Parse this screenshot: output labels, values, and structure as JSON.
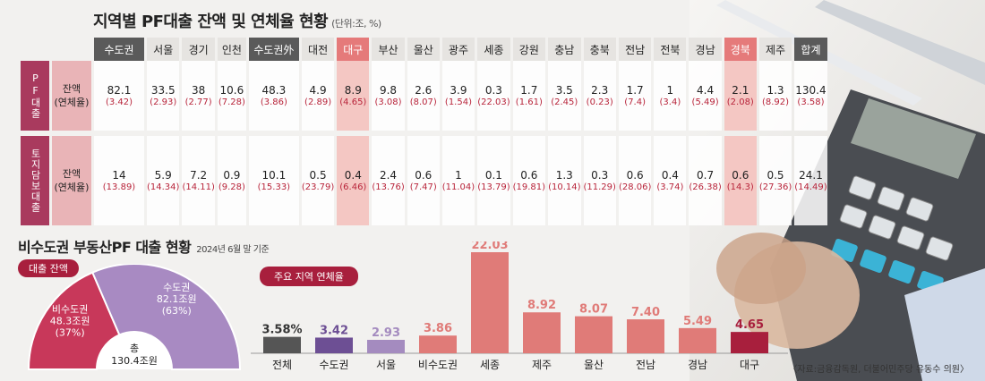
{
  "table": {
    "title": "지역별 PF대출 잔액 및 연체율 현황",
    "unit": "(단위:조, %)",
    "headers": [
      "수도권",
      "서울",
      "경기",
      "인천",
      "수도권外",
      "대전",
      "대구",
      "부산",
      "울산",
      "광주",
      "세종",
      "강원",
      "충남",
      "충북",
      "전남",
      "전북",
      "경남",
      "경북",
      "제주",
      "합계"
    ],
    "row_groups": [
      {
        "side_label": "PF대출",
        "label_line1": "잔액",
        "label_line2": "(연체율)",
        "values": [
          "82.1",
          "33.5",
          "38",
          "10.6",
          "48.3",
          "4.9",
          "8.9",
          "9.8",
          "2.6",
          "3.9",
          "0.3",
          "1.7",
          "3.5",
          "2.3",
          "1.7",
          "1",
          "4.4",
          "2.1",
          "1.3",
          "130.4"
        ],
        "rates": [
          "(3.42)",
          "(2.93)",
          "(2.77)",
          "(7.28)",
          "(3.86)",
          "(2.89)",
          "(4.65)",
          "(3.08)",
          "(8.07)",
          "(1.54)",
          "(22.03)",
          "(1.61)",
          "(2.45)",
          "(0.23)",
          "(7.4)",
          "(3.4)",
          "(5.49)",
          "(2.08)",
          "(8.92)",
          "(3.58)"
        ]
      },
      {
        "side_label": "토지담보대출",
        "label_line1": "잔액",
        "label_line2": "(연체율)",
        "values": [
          "14",
          "5.9",
          "7.2",
          "0.9",
          "10.1",
          "0.5",
          "0.4",
          "2.4",
          "0.6",
          "1",
          "0.1",
          "0.6",
          "1.3",
          "0.3",
          "0.6",
          "0.4",
          "0.7",
          "0.6",
          "0.5",
          "24.1"
        ],
        "rates": [
          "(13.89)",
          "(14.34)",
          "(14.11)",
          "(9.28)",
          "(15.33)",
          "(23.79)",
          "(6.46)",
          "(13.76)",
          "(7.47)",
          "(11.04)",
          "(13.79)",
          "(19.81)",
          "(10.14)",
          "(11.29)",
          "(28.06)",
          "(3.74)",
          "(26.38)",
          "(14.3)",
          "(27.36)",
          "(14.49)"
        ]
      }
    ]
  },
  "section": {
    "title": "비수도권 부동산PF 대출 현황",
    "date": "2024년 6월 말 기준"
  },
  "colors": {
    "accent": "#a81f3d",
    "capital_area": "#a88ac2",
    "non_capital": "#c8385a",
    "bar_red": "#e07b78",
    "bar_dark": "#555555",
    "bar_purple": "#6d4f94",
    "bar_lightpurple": "#a48bbf",
    "highlight": "#e57a7a"
  },
  "chart_data": [
    {
      "type": "pie",
      "title": "대출 잔액",
      "center_label": [
        "총",
        "130.4조원"
      ],
      "slices": [
        {
          "label": "수도권",
          "value": 82.1,
          "value_label": "82.1조원",
          "percent": "(63%)"
        },
        {
          "label": "비수도권",
          "value": 48.3,
          "value_label": "48.3조원",
          "percent": "(37%)"
        }
      ]
    },
    {
      "type": "bar",
      "title": "주요 지역 연체율",
      "categories": [
        "전체",
        "수도권",
        "서울",
        "비수도권",
        "세종",
        "제주",
        "울산",
        "전남",
        "경남",
        "대구"
      ],
      "values": [
        3.58,
        3.42,
        2.93,
        3.86,
        22.03,
        8.92,
        8.07,
        7.4,
        5.49,
        4.65
      ],
      "value_labels": [
        "3.58%",
        "3.42",
        "2.93",
        "3.86",
        "22.03",
        "8.92",
        "8.07",
        "7.40",
        "5.49",
        "4.65"
      ]
    }
  ],
  "source": "〈자료:금융감독원, 더불어민주당 유동수 의원〉"
}
